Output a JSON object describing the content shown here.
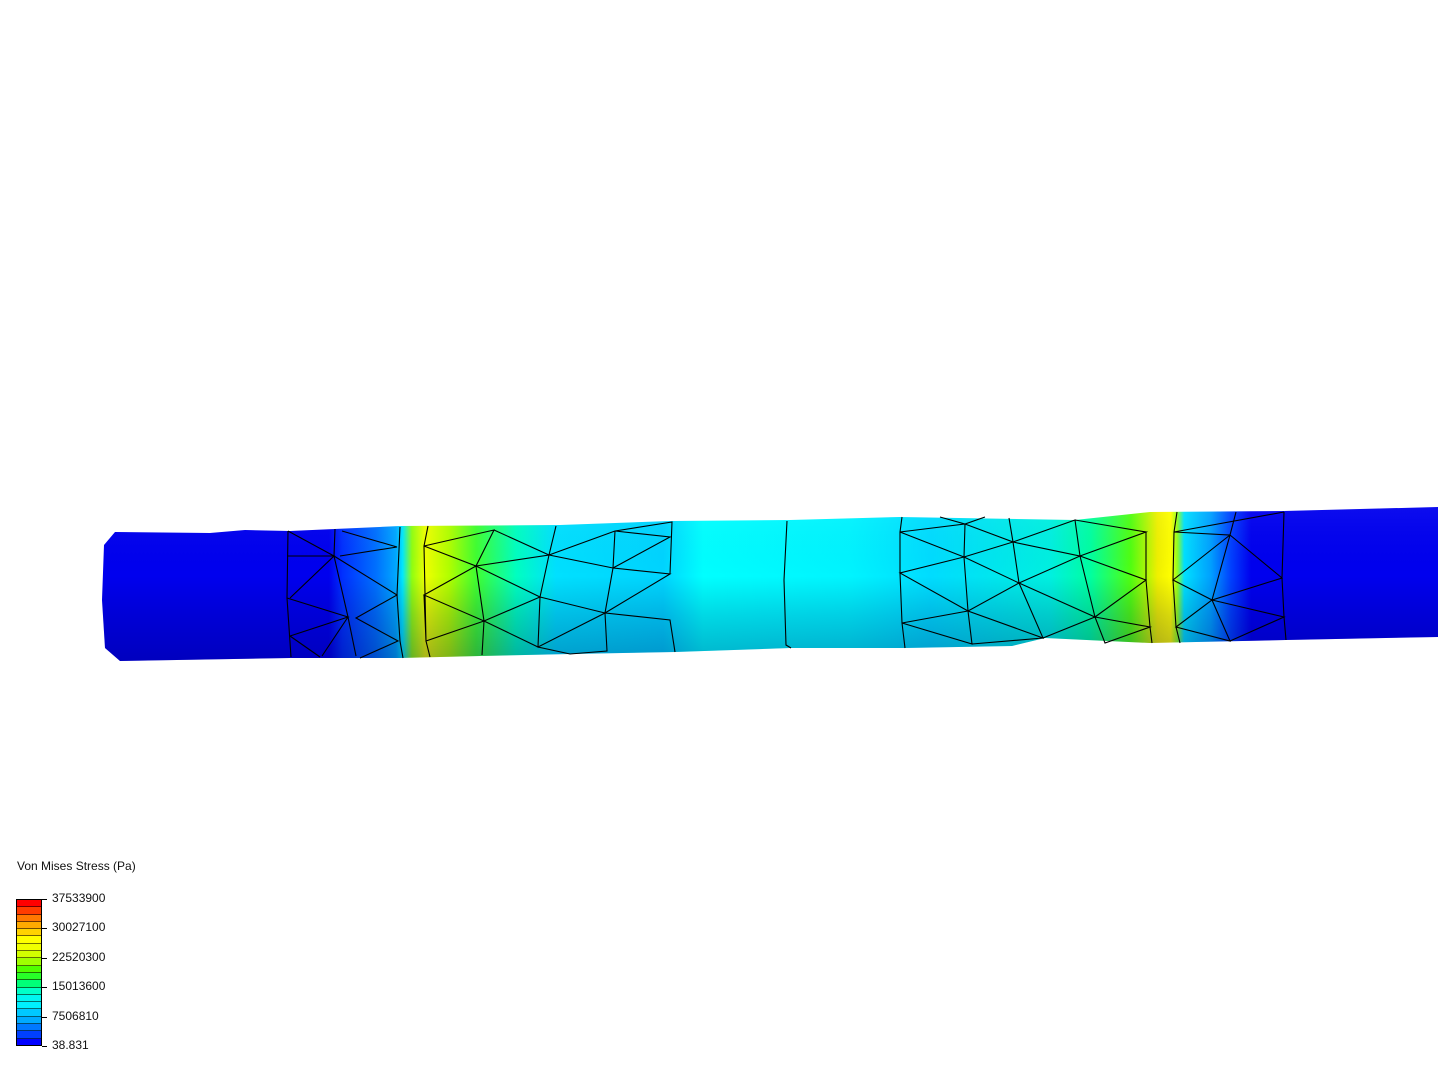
{
  "legend": {
    "title": "Von Mises Stress (Pa)",
    "ticks": [
      "37533900",
      "30027100",
      "22520300",
      "15013600",
      "7506810",
      "38.831"
    ],
    "band_colors": [
      "#ff0000",
      "#ff3c00",
      "#ff7800",
      "#ffaa00",
      "#ffd200",
      "#ffff00",
      "#f0ff00",
      "#d2ff00",
      "#a0ff00",
      "#50ff00",
      "#28ff28",
      "#00ff78",
      "#00ffc8",
      "#00f5f0",
      "#00f0ff",
      "#00c8ff",
      "#00aaff",
      "#0078ff",
      "#0040ff",
      "#0000ff"
    ]
  },
  "model": {
    "colormap_min": 38.831,
    "colormap_max": 37533900
  }
}
